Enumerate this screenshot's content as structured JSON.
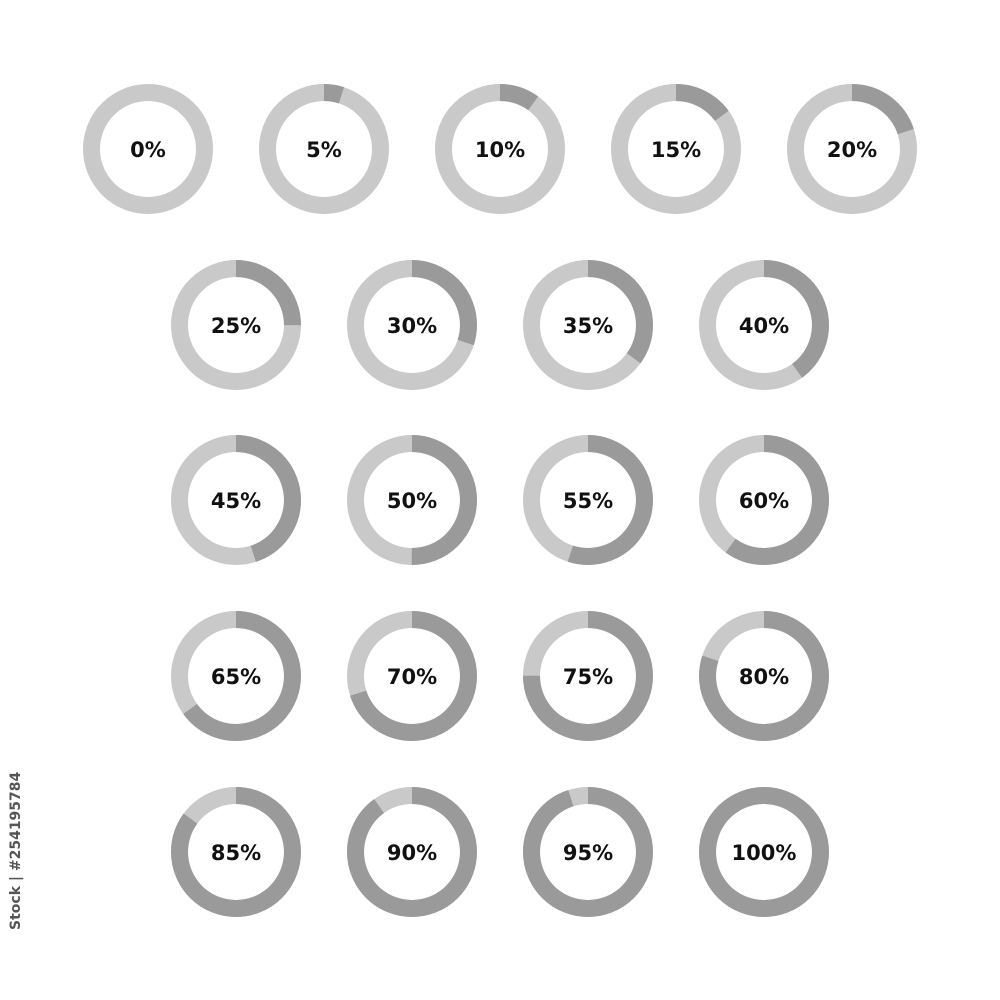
{
  "indicators": [
    {
      "label": "0%",
      "value": 0
    },
    {
      "label": "5%",
      "value": 5
    },
    {
      "label": "10%",
      "value": 10
    },
    {
      "label": "15%",
      "value": 15
    },
    {
      "label": "20%",
      "value": 20
    },
    {
      "label": "25%",
      "value": 25
    },
    {
      "label": "30%",
      "value": 30
    },
    {
      "label": "35%",
      "value": 35
    },
    {
      "label": "40%",
      "value": 40
    },
    {
      "label": "45%",
      "value": 45
    },
    {
      "label": "50%",
      "value": 50
    },
    {
      "label": "55%",
      "value": 55
    },
    {
      "label": "60%",
      "value": 60
    },
    {
      "label": "65%",
      "value": 65
    },
    {
      "label": "70%",
      "value": 70
    },
    {
      "label": "75%",
      "value": 75
    },
    {
      "label": "80%",
      "value": 80
    },
    {
      "label": "85%",
      "value": 85
    },
    {
      "label": "90%",
      "value": 90
    },
    {
      "label": "95%",
      "value": 95
    },
    {
      "label": "100%",
      "value": 100
    }
  ],
  "colors": {
    "track": "#c9c9c9",
    "progress": "#9a9a9a",
    "text": "#111111"
  },
  "watermark": {
    "stock_id": "Stock | #254195784"
  }
}
